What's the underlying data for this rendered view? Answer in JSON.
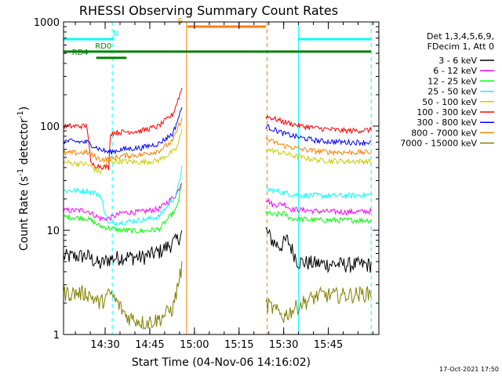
{
  "chart_data": {
    "type": "line",
    "title": "RHESSI Observing Summary Count Rates",
    "xlabel": "Start Time (04-Nov-06 14:16:02)",
    "ylabel_main": "Count Rate (s",
    "ylabel_sup1": "-1",
    "ylabel_mid": " detector",
    "ylabel_sup2": "-1",
    "ylabel_end": ")",
    "yscale": "log",
    "ylim": [
      1,
      1000
    ],
    "xlim_min": [
      14.267,
      16.033
    ],
    "y_ticks": [
      {
        "v": 1,
        "label": "1"
      },
      {
        "v": 10,
        "label": "10"
      },
      {
        "v": 100,
        "label": "100"
      },
      {
        "v": 1000,
        "label": "1000"
      }
    ],
    "x_ticks": [
      {
        "t": 14.5,
        "label": "14:30"
      },
      {
        "t": 14.75,
        "label": "14:45"
      },
      {
        "t": 15.0,
        "label": "15:00"
      },
      {
        "t": 15.25,
        "label": "15:15"
      },
      {
        "t": 15.5,
        "label": "15:30"
      },
      {
        "t": 15.75,
        "label": "15:45"
      }
    ],
    "legend_header": [
      "Det 1,3,4,5,6,9,",
      "FDecim 1, Att 0"
    ],
    "series": [
      {
        "name": "3 - 6 keV",
        "color": "#000000",
        "segments": [
          [
            [
              14.267,
              5.6
            ],
            [
              14.4,
              5.7
            ],
            [
              14.47,
              4.7
            ],
            [
              14.52,
              5.3
            ],
            [
              14.6,
              5.6
            ],
            [
              14.7,
              5.5
            ],
            [
              14.8,
              6.2
            ],
            [
              14.9,
              8.0
            ],
            [
              14.93,
              9.5
            ]
          ],
          [
            [
              15.4,
              10.0
            ],
            [
              15.44,
              7.8
            ],
            [
              15.48,
              7.0
            ],
            [
              15.52,
              8.2
            ],
            [
              15.58,
              5.0
            ],
            [
              15.7,
              4.8
            ],
            [
              15.85,
              4.7
            ],
            [
              15.99,
              4.7
            ]
          ]
        ]
      },
      {
        "name": "6 - 12 keV",
        "color": "#ff00ff",
        "segments": [
          [
            [
              14.267,
              15.5
            ],
            [
              14.4,
              15.5
            ],
            [
              14.47,
              13.0
            ],
            [
              14.52,
              13.0
            ],
            [
              14.6,
              14.8
            ],
            [
              14.7,
              15.0
            ],
            [
              14.8,
              16.0
            ],
            [
              14.9,
              22.0
            ],
            [
              14.93,
              30.0
            ]
          ],
          [
            [
              15.4,
              20.0
            ],
            [
              15.44,
              17.5
            ],
            [
              15.5,
              18.0
            ],
            [
              15.54,
              16.0
            ],
            [
              15.7,
              15.2
            ],
            [
              15.85,
              15.0
            ],
            [
              15.99,
              15.2
            ]
          ]
        ]
      },
      {
        "name": "12 - 25 keV",
        "color": "#00ff00",
        "segments": [
          [
            [
              14.267,
              13.5
            ],
            [
              14.4,
              13.0
            ],
            [
              14.47,
              11.0
            ],
            [
              14.52,
              10.5
            ],
            [
              14.6,
              10.0
            ],
            [
              14.7,
              9.8
            ],
            [
              14.8,
              10.2
            ],
            [
              14.9,
              16.0
            ],
            [
              14.93,
              28.0
            ]
          ],
          [
            [
              15.4,
              15.0
            ],
            [
              15.44,
              14.0
            ],
            [
              15.5,
              14.5
            ],
            [
              15.54,
              13.0
            ],
            [
              15.7,
              12.5
            ],
            [
              15.85,
              12.5
            ],
            [
              15.99,
              12.5
            ]
          ]
        ]
      },
      {
        "name": "25 - 50 keV",
        "color": "#00ffff",
        "segments": [
          [
            [
              14.267,
              24.0
            ],
            [
              14.4,
              24.0
            ],
            [
              14.47,
              22.0
            ],
            [
              14.52,
              11.5
            ],
            [
              14.6,
              12.0
            ],
            [
              14.7,
              12.5
            ],
            [
              14.8,
              13.5
            ],
            [
              14.9,
              22.0
            ],
            [
              14.93,
              40.0
            ]
          ],
          [
            [
              15.4,
              25.0
            ],
            [
              15.5,
              23.0
            ],
            [
              15.56,
              22.0
            ],
            [
              15.7,
              21.5
            ],
            [
              15.85,
              21.5
            ],
            [
              15.99,
              22.0
            ]
          ]
        ]
      },
      {
        "name": "50 - 100 keV",
        "color": "#cccc00",
        "segments": [
          [
            [
              14.267,
              45.0
            ],
            [
              14.4,
              43.0
            ],
            [
              14.47,
              36.0
            ],
            [
              14.52,
              46.0
            ],
            [
              14.6,
              46.0
            ],
            [
              14.7,
              45.0
            ],
            [
              14.8,
              47.0
            ],
            [
              14.9,
              60.0
            ],
            [
              14.93,
              90.0
            ]
          ],
          [
            [
              15.4,
              60.0
            ],
            [
              15.5,
              55.0
            ],
            [
              15.6,
              50.0
            ],
            [
              15.7,
              47.0
            ],
            [
              15.85,
              46.0
            ],
            [
              15.99,
              46.0
            ]
          ]
        ]
      },
      {
        "name": "100 - 300 keV",
        "color": "#ff0000",
        "segments": [
          [
            [
              14.267,
              100.0
            ],
            [
              14.4,
              100.0
            ],
            [
              14.42,
              43.0
            ],
            [
              14.52,
              40.0
            ],
            [
              14.53,
              86.0
            ],
            [
              14.6,
              88.0
            ],
            [
              14.7,
              90.0
            ],
            [
              14.8,
              100.0
            ],
            [
              14.88,
              130.0
            ],
            [
              14.93,
              230.0
            ]
          ],
          [
            [
              15.4,
              125.0
            ],
            [
              15.5,
              110.0
            ],
            [
              15.6,
              100.0
            ],
            [
              15.7,
              95.0
            ],
            [
              15.85,
              90.0
            ],
            [
              15.99,
              92.0
            ]
          ]
        ]
      },
      {
        "name": "300 - 800 keV",
        "color": "#0000ff",
        "segments": [
          [
            [
              14.267,
              72.0
            ],
            [
              14.4,
              70.0
            ],
            [
              14.47,
              60.0
            ],
            [
              14.52,
              56.0
            ],
            [
              14.6,
              60.0
            ],
            [
              14.7,
              62.0
            ],
            [
              14.8,
              68.0
            ],
            [
              14.88,
              85.0
            ],
            [
              14.93,
              150.0
            ]
          ],
          [
            [
              15.4,
              100.0
            ],
            [
              15.5,
              85.0
            ],
            [
              15.6,
              77.0
            ],
            [
              15.7,
              72.0
            ],
            [
              15.85,
              70.0
            ],
            [
              15.99,
              70.0
            ]
          ]
        ]
      },
      {
        "name": "800 - 7000 keV",
        "color": "#ff8000",
        "segments": [
          [
            [
              14.267,
              55.0
            ],
            [
              14.4,
              56.0
            ],
            [
              14.47,
              48.0
            ],
            [
              14.52,
              48.0
            ],
            [
              14.6,
              52.0
            ],
            [
              14.7,
              53.0
            ],
            [
              14.8,
              58.0
            ],
            [
              14.88,
              72.0
            ],
            [
              14.93,
              120.0
            ]
          ],
          [
            [
              15.4,
              75.0
            ],
            [
              15.5,
              65.0
            ],
            [
              15.6,
              60.0
            ],
            [
              15.7,
              57.0
            ],
            [
              15.85,
              56.0
            ],
            [
              15.99,
              56.0
            ]
          ]
        ]
      },
      {
        "name": "7000 - 15000 keV",
        "color": "#808000",
        "segments": [
          [
            [
              14.267,
              2.5
            ],
            [
              14.4,
              2.5
            ],
            [
              14.47,
              2.0
            ],
            [
              14.53,
              2.5
            ],
            [
              14.62,
              1.5
            ],
            [
              14.72,
              1.3
            ],
            [
              14.8,
              1.4
            ],
            [
              14.88,
              1.8
            ],
            [
              14.93,
              4.5
            ]
          ],
          [
            [
              15.4,
              2.0
            ],
            [
              15.5,
              1.5
            ],
            [
              15.6,
              2.0
            ],
            [
              15.7,
              2.4
            ],
            [
              15.85,
              2.4
            ],
            [
              15.99,
              2.5
            ]
          ]
        ]
      }
    ],
    "flag_bars": [
      {
        "label": "N",
        "color": "#00ffff",
        "level": 0.945,
        "ranges": [
          [
            14.267,
            14.55
          ],
          [
            15.58,
            15.99
          ]
        ],
        "label_at": 14.56
      },
      {
        "label": "S",
        "color": "#ff8000",
        "level": 0.985,
        "ranges": [
          [
            14.96,
            15.4
          ]
        ],
        "label_at": 14.92
      },
      {
        "label": "RD0",
        "color": "#008000",
        "level": 0.905,
        "ranges": [
          [
            14.267,
            15.99
          ]
        ],
        "label_at": 14.49
      },
      {
        "label": "RD4",
        "color": "#008000",
        "level": 0.885,
        "ranges": [
          [
            14.45,
            14.62
          ]
        ],
        "label_at": 14.36
      }
    ],
    "vlines": [
      {
        "t": 14.267,
        "color": "#00ffff",
        "dashed": false
      },
      {
        "t": 14.54,
        "color": "#00ffff",
        "dashed": true
      },
      {
        "t": 14.956,
        "color": "#ff8000",
        "dashed": false
      },
      {
        "t": 15.407,
        "color": "#ff8000",
        "dashed": true
      },
      {
        "t": 15.583,
        "color": "#00ffff",
        "dashed": false
      },
      {
        "t": 15.99,
        "color": "#00ffff",
        "dashed": true
      }
    ],
    "footer_date": "17-Oct-2021 17:50"
  }
}
